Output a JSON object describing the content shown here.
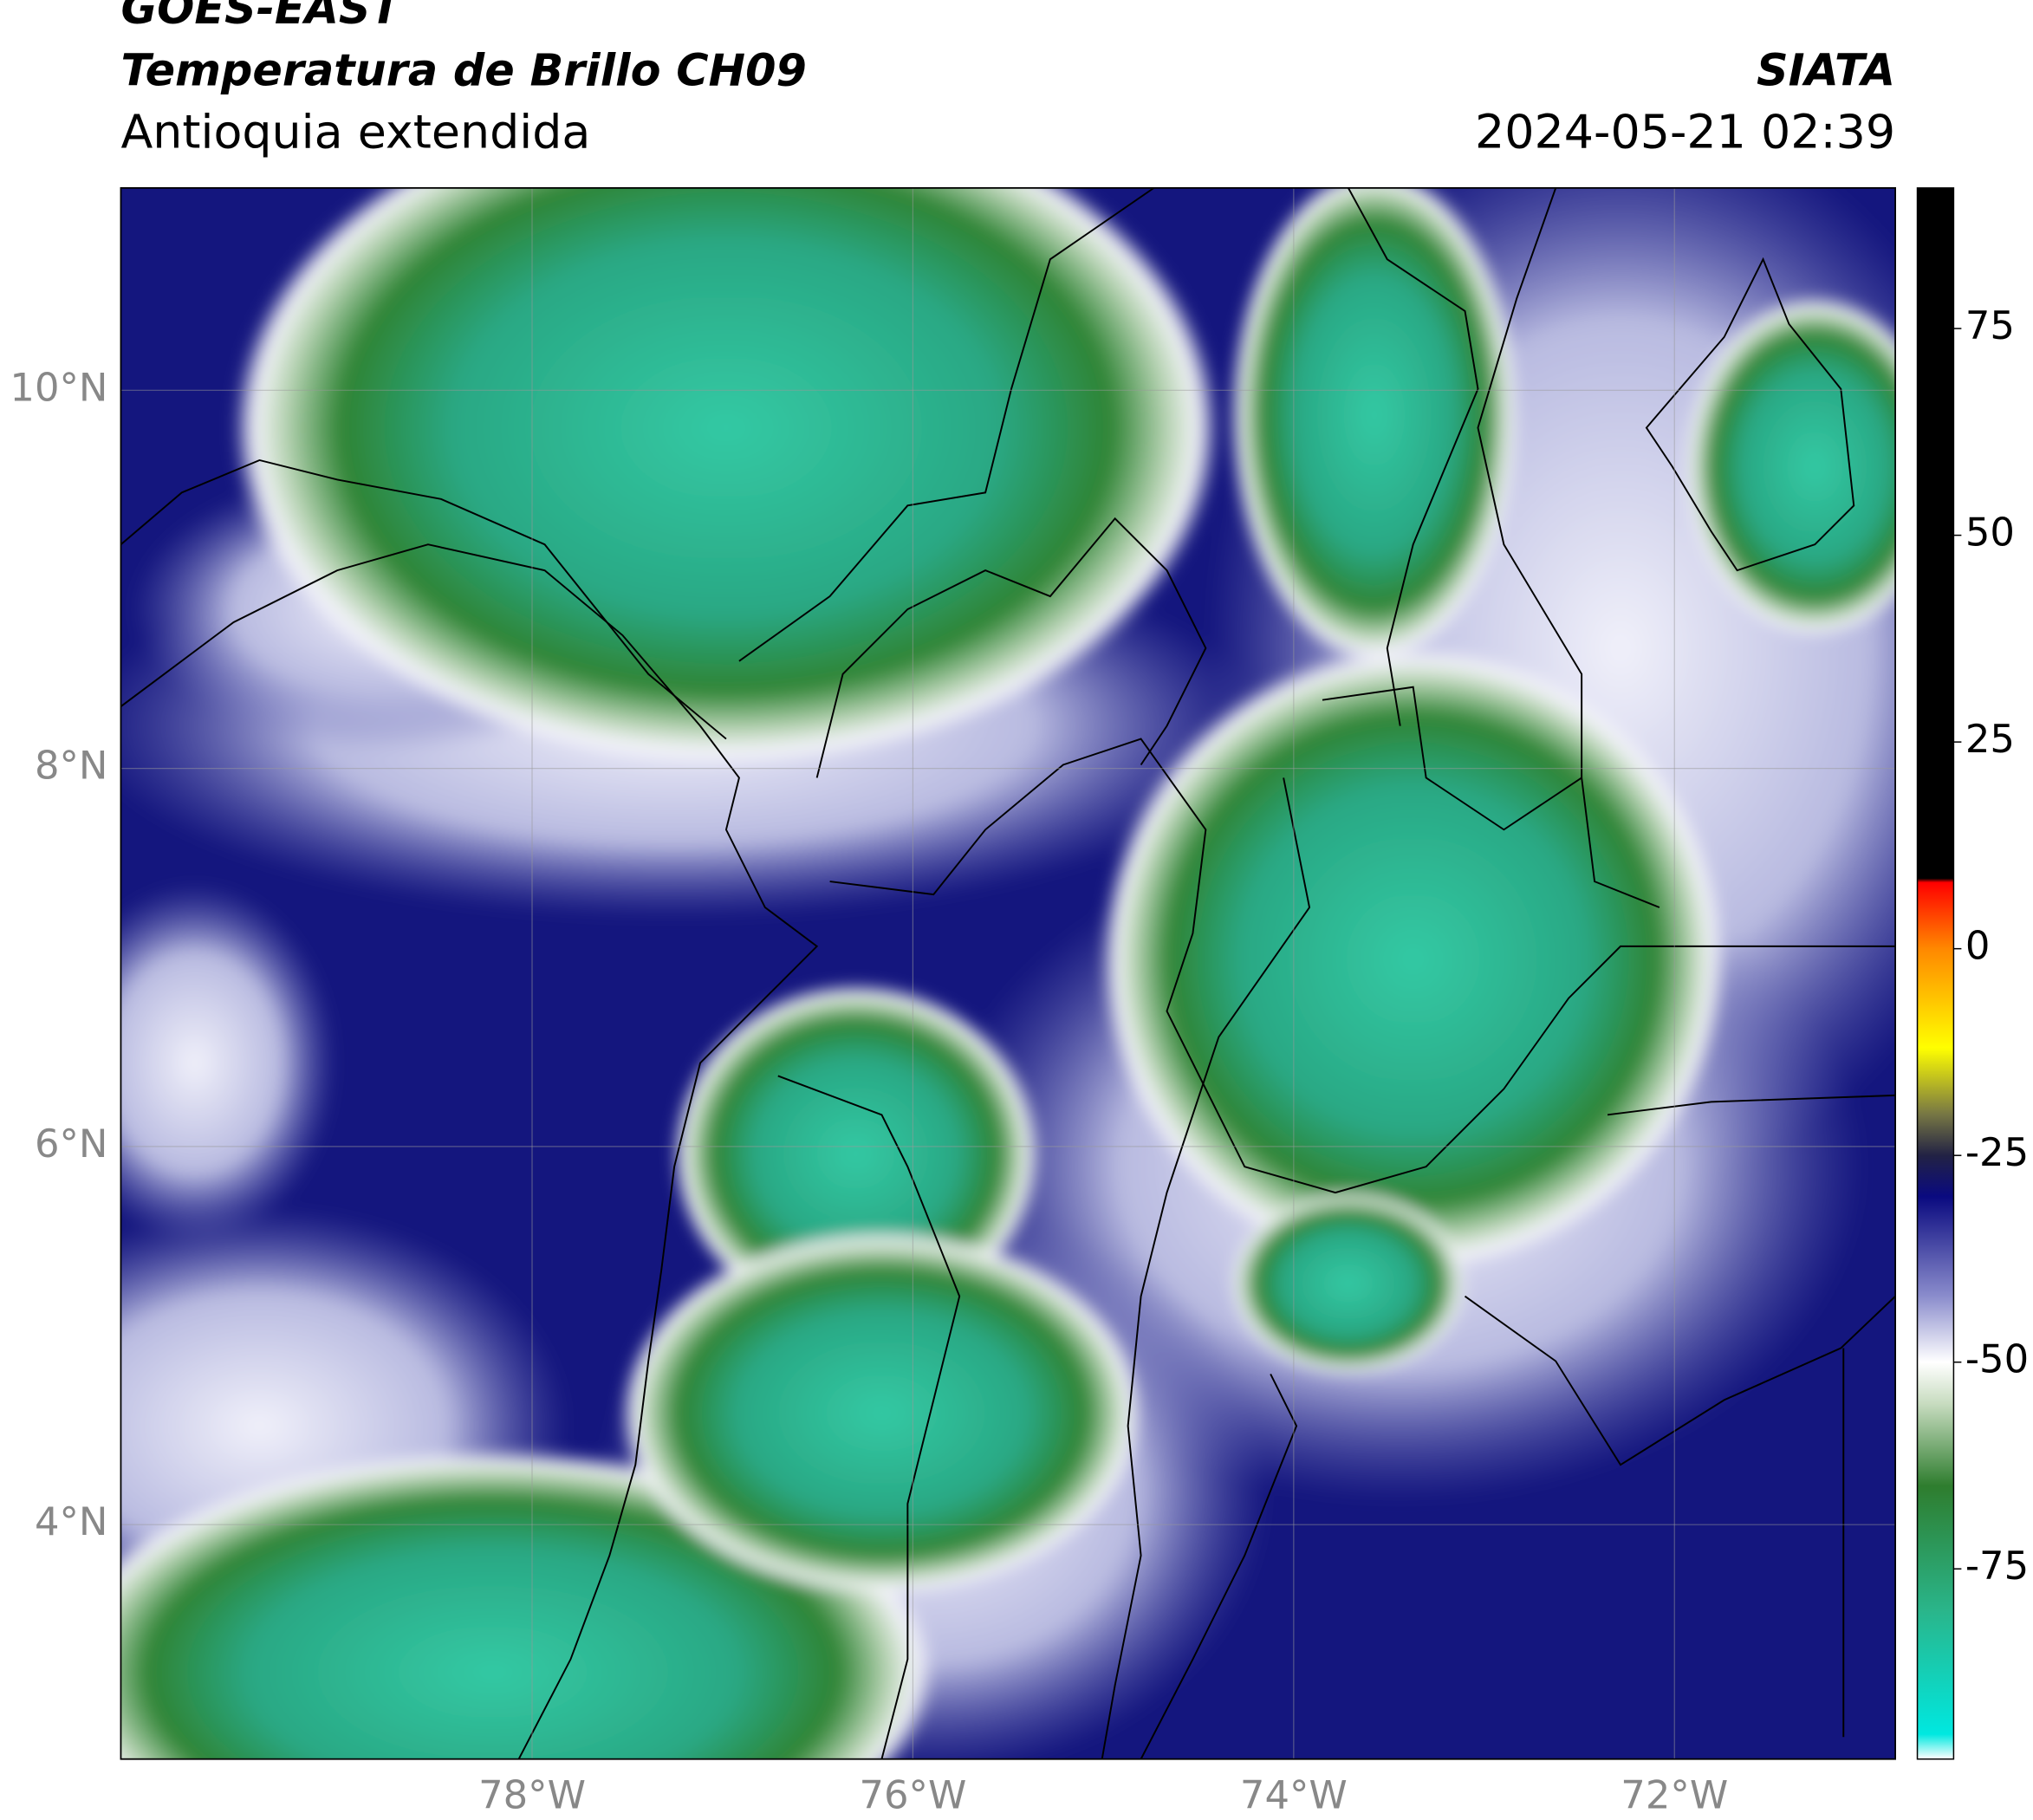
{
  "header": {
    "title": "GOES-EAST",
    "subtitle": "Temperatura de Brillo CH09",
    "region": "Antioquia extendida",
    "source": "SIATA",
    "datetime": "2024-05-21 02:39"
  },
  "map": {
    "xlim": [
      -80.16,
      -70.84
    ],
    "ylim": [
      2.76,
      11.07
    ],
    "grid": true,
    "xticks": [
      {
        "value": -78,
        "label": "78°W"
      },
      {
        "value": -76,
        "label": "76°W"
      },
      {
        "value": -74,
        "label": "74°W"
      },
      {
        "value": -72,
        "label": "72°W"
      }
    ],
    "yticks": [
      {
        "value": 10,
        "label": "10°N"
      },
      {
        "value": 8,
        "label": "8°N"
      },
      {
        "value": 6,
        "label": "6°N"
      },
      {
        "value": 4,
        "label": "4°N"
      }
    ]
  },
  "colorbar": {
    "lim": [
      -98,
      92
    ],
    "ticks": [
      75,
      50,
      25,
      0,
      -25,
      -50,
      -75
    ],
    "stops": [
      {
        "value": -98,
        "color": "#ffffff"
      },
      {
        "value": -95,
        "color": "#00e8e0"
      },
      {
        "value": -80,
        "color": "#2ab58a"
      },
      {
        "value": -65,
        "color": "#2e7d2e"
      },
      {
        "value": -55,
        "color": "#c8dcc0"
      },
      {
        "value": -50,
        "color": "#ffffff"
      },
      {
        "value": -42,
        "color": "#8a8ccc"
      },
      {
        "value": -30,
        "color": "#0a0a80"
      },
      {
        "value": -25,
        "color": "#222244"
      },
      {
        "value": -20,
        "color": "#777744"
      },
      {
        "value": -12,
        "color": "#ffff00"
      },
      {
        "value": 0,
        "color": "#ff8800"
      },
      {
        "value": 8,
        "color": "#ff0000"
      },
      {
        "value": 8.5,
        "color": "#000000"
      },
      {
        "value": 92,
        "color": "#000000"
      }
    ]
  }
}
